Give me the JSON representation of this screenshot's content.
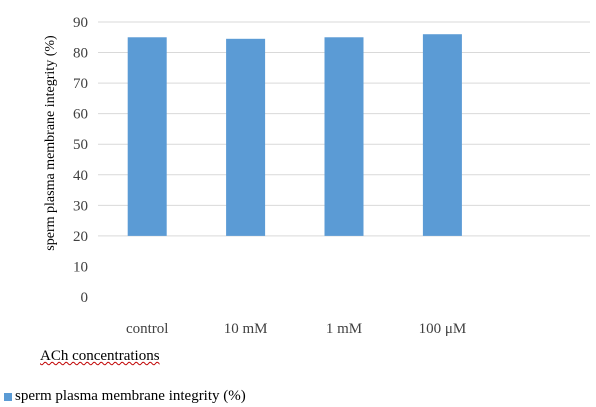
{
  "chart_data": {
    "type": "bar",
    "categories": [
      "control",
      "10 mM",
      "1 mM",
      "100 μM",
      ""
    ],
    "values": [
      85,
      84.5,
      85,
      86,
      null
    ],
    "title": "",
    "xlabel": "ACh concentrations",
    "ylabel": "sperm plasma membrane integrity (%)",
    "yticks": [
      0,
      10,
      20,
      30,
      40,
      50,
      60,
      70,
      80,
      90
    ],
    "ylim": [
      0,
      90
    ],
    "bar_base": 20,
    "grid": true,
    "legend": {
      "position": "bottom-left",
      "entries": [
        "sperm plasma membrane integrity (%)"
      ]
    },
    "colors": {
      "bar": "#5b9bd5",
      "grid": "#d9d9d9"
    }
  }
}
